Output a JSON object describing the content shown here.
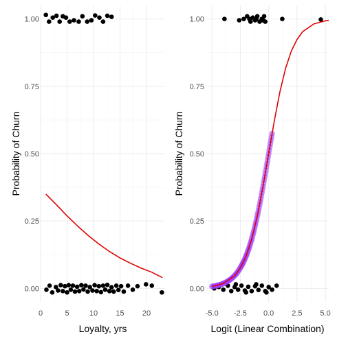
{
  "colors": {
    "points": "#000000",
    "fitted_points": "#9b3cff",
    "curve": "#e00000",
    "grid": "#ebebeb"
  },
  "chart_data": [
    {
      "type": "scatter",
      "xlabel": "Loyalty, yrs",
      "ylabel": "Probability of Churn",
      "xlim": [
        0,
        23.5
      ],
      "ylim": [
        -0.05,
        1.05
      ],
      "x_ticks": [
        0,
        5,
        10,
        15,
        20
      ],
      "x_tick_labels": [
        "0",
        "5",
        "10",
        "15",
        "20"
      ],
      "y_ticks": [
        0,
        0.25,
        0.5,
        0.75,
        1
      ],
      "y_tick_labels": [
        "0.00",
        "0.25",
        "0.50",
        "0.75",
        "1.00"
      ],
      "grid": true,
      "series": [
        {
          "kind": "points",
          "points": [
            [
              1.0,
              1.015
            ],
            [
              1.6,
              0.99
            ],
            [
              2.3,
              1.005
            ],
            [
              3.0,
              1.012
            ],
            [
              3.6,
              0.99
            ],
            [
              4.2,
              1.01
            ],
            [
              4.8,
              1.005
            ],
            [
              5.5,
              0.99
            ],
            [
              6.3,
              0.995
            ],
            [
              7.2,
              0.99
            ],
            [
              7.9,
              1.01
            ],
            [
              8.8,
              0.99
            ],
            [
              9.6,
              0.995
            ],
            [
              10.3,
              1.013
            ],
            [
              11.1,
              1.005
            ],
            [
              11.8,
              0.99
            ],
            [
              12.6,
              1.012
            ],
            [
              13.4,
              1.008
            ],
            [
              1.1,
              -0.005
            ],
            [
              1.7,
              0.01
            ],
            [
              2.2,
              -0.015
            ],
            [
              2.9,
              0.005
            ],
            [
              3.3,
              -0.008
            ],
            [
              3.8,
              0.012
            ],
            [
              4.2,
              -0.01
            ],
            [
              4.6,
              0.008
            ],
            [
              5.0,
              -0.015
            ],
            [
              5.3,
              0.012
            ],
            [
              5.7,
              -0.005
            ],
            [
              6.1,
              0.01
            ],
            [
              6.5,
              -0.012
            ],
            [
              6.9,
              0.006
            ],
            [
              7.3,
              -0.01
            ],
            [
              7.7,
              0.012
            ],
            [
              8.1,
              -0.004
            ],
            [
              8.5,
              0.01
            ],
            [
              8.9,
              -0.012
            ],
            [
              9.3,
              0.005
            ],
            [
              9.8,
              -0.008
            ],
            [
              10.2,
              0.012
            ],
            [
              10.6,
              -0.01
            ],
            [
              11.0,
              0.008
            ],
            [
              11.4,
              -0.014
            ],
            [
              11.8,
              0.01
            ],
            [
              12.2,
              -0.005
            ],
            [
              12.6,
              0.013
            ],
            [
              13.0,
              -0.01
            ],
            [
              13.4,
              0.004
            ],
            [
              13.8,
              -0.012
            ],
            [
              14.3,
              0.01
            ],
            [
              14.7,
              -0.006
            ],
            [
              15.2,
              0.008
            ],
            [
              15.7,
              -0.012
            ],
            [
              16.5,
              0.01
            ],
            [
              17.4,
              -0.005
            ],
            [
              18.3,
              0.008
            ],
            [
              19.9,
              0.015
            ],
            [
              21.0,
              0.01
            ],
            [
              22.9,
              -0.015
            ]
          ]
        },
        {
          "kind": "line",
          "x": [
            1,
            3,
            5,
            7,
            9,
            11,
            13,
            15,
            17,
            19,
            21,
            23
          ],
          "y": [
            0.35,
            0.31,
            0.269,
            0.231,
            0.196,
            0.165,
            0.137,
            0.113,
            0.093,
            0.075,
            0.06,
            0.04
          ]
        }
      ]
    },
    {
      "type": "scatter",
      "xlabel": "Logit (Linear Combination)",
      "ylabel": "Probability of Churn",
      "xlim": [
        -5.5,
        5.3
      ],
      "ylim": [
        -0.05,
        1.05
      ],
      "x_ticks": [
        -5,
        -2.5,
        0,
        2.5,
        5
      ],
      "x_tick_labels": [
        "-5.0",
        "-2.5",
        "0.0",
        "2.5",
        "5.0"
      ],
      "y_ticks": [
        0,
        0.25,
        0.5,
        0.75,
        1
      ],
      "y_tick_labels": [
        "0.00",
        "0.25",
        "0.50",
        "0.75",
        "1.00"
      ],
      "grid": true,
      "series": [
        {
          "kind": "points",
          "points": [
            [
              -2.2,
              1.0
            ],
            [
              -1.9,
              1.01
            ],
            [
              -1.6,
              0.99
            ],
            [
              -1.4,
              1.005
            ],
            [
              -1.2,
              0.995
            ],
            [
              -1.0,
              1.01
            ],
            [
              -0.8,
              0.99
            ],
            [
              -0.6,
              1.0
            ],
            [
              -0.4,
              1.01
            ],
            [
              -0.3,
              0.99
            ],
            [
              -1.7,
              1.0
            ],
            [
              -1.1,
              1.0
            ],
            [
              -0.5,
              0.995
            ],
            [
              -3.9,
              1.0
            ],
            [
              -2.6,
              0.995
            ],
            [
              1.2,
              1.0
            ],
            [
              4.6,
              0.998
            ],
            [
              -4.8,
              0.0
            ],
            [
              -4.4,
              0.005
            ],
            [
              -4.0,
              -0.005
            ],
            [
              -3.6,
              0.01
            ],
            [
              -3.3,
              -0.01
            ],
            [
              -3.0,
              0.005
            ],
            [
              -2.7,
              -0.005
            ],
            [
              -2.4,
              0.01
            ],
            [
              -2.1,
              -0.008
            ],
            [
              -1.8,
              0.006
            ],
            [
              -1.5,
              -0.01
            ],
            [
              -1.2,
              0.008
            ],
            [
              -0.9,
              -0.006
            ],
            [
              -0.6,
              0.01
            ],
            [
              -0.3,
              -0.01
            ],
            [
              0.0,
              0.005
            ],
            [
              0.3,
              -0.005
            ],
            [
              0.7,
              0.01
            ],
            [
              -2.9,
              0.015
            ],
            [
              -2.0,
              -0.015
            ],
            [
              -1.1,
              0.015
            ],
            [
              -0.2,
              -0.015
            ]
          ]
        },
        {
          "kind": "fitted_points",
          "points": [
            [
              -5.0,
              0.007
            ],
            [
              -4.6,
              0.01
            ],
            [
              -4.3,
              0.013
            ],
            [
              -4.0,
              0.018
            ],
            [
              -3.7,
              0.024
            ],
            [
              -3.4,
              0.032
            ],
            [
              -3.1,
              0.043
            ],
            [
              -2.8,
              0.057
            ],
            [
              -2.5,
              0.076
            ],
            [
              -2.3,
              0.091
            ],
            [
              -2.1,
              0.109
            ],
            [
              -1.9,
              0.13
            ],
            [
              -1.7,
              0.154
            ],
            [
              -1.5,
              0.182
            ],
            [
              -1.3,
              0.214
            ],
            [
              -1.1,
              0.25
            ],
            [
              -0.9,
              0.289
            ],
            [
              -0.7,
              0.332
            ],
            [
              -0.5,
              0.378
            ],
            [
              -0.3,
              0.426
            ],
            [
              -0.1,
              0.475
            ],
            [
              0.1,
              0.525
            ],
            [
              0.3,
              0.574
            ]
          ]
        },
        {
          "kind": "line",
          "x": [
            -5.0,
            -4.0,
            -3.0,
            -2.5,
            -2.0,
            -1.5,
            -1.0,
            -0.5,
            0.0,
            0.5,
            1.0,
            1.5,
            2.0,
            2.5,
            3.0,
            4.0,
            5.0,
            5.3
          ],
          "y": [
            0.007,
            0.018,
            0.047,
            0.076,
            0.119,
            0.182,
            0.269,
            0.378,
            0.5,
            0.622,
            0.731,
            0.818,
            0.881,
            0.924,
            0.953,
            0.982,
            0.993,
            0.995
          ]
        }
      ]
    }
  ]
}
